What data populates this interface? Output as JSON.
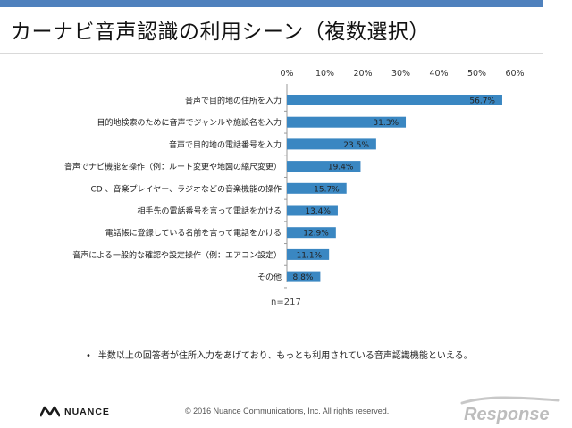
{
  "header": {
    "title": "カーナビ音声認識の利用シーン（複数選択）",
    "accent_color": "#4f81bd"
  },
  "chart_data": {
    "type": "bar",
    "orientation": "horizontal",
    "categories": [
      "音声で目的地の住所を入力",
      "目的地検索のために音声でジャンルや施設名を入力",
      "音声で目的地の電話番号を入力",
      "音声でナビ機能を操作（例：ルート変更や地図の縮尺変更）",
      "CD 、音楽プレイヤー、ラジオなどの音楽機能の操作",
      "相手先の電話番号を言って電話をかける",
      "電話帳に登録している名前を言って電話をかける",
      "音声による一般的な確認や設定操作（例：エアコン設定）",
      "その他"
    ],
    "values": [
      56.7,
      31.3,
      23.5,
      19.4,
      15.7,
      13.4,
      12.9,
      11.1,
      8.8
    ],
    "data_labels": [
      "56.7%",
      "31.3%",
      "23.5%",
      "19.4%",
      "15.7%",
      "13.4%",
      "12.9%",
      "11.1%",
      "8.8%"
    ],
    "x_ticks": [
      "0%",
      "10%",
      "20%",
      "30%",
      "40%",
      "50%",
      "60%"
    ],
    "xlim": [
      0,
      60
    ],
    "grid": false,
    "bar_color": "#3a87c2",
    "note": "n=217"
  },
  "footer": {
    "bullet": "•",
    "note": "半数以上の回答者が住所入力をあげており、もっとも利用されている音声認識機能といえる。",
    "logo": "NUANCE",
    "copyright": "© 2016 Nuance Communications, Inc. All rights reserved.",
    "watermark": "Response"
  }
}
